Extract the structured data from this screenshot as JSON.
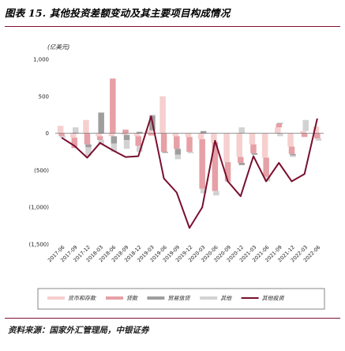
{
  "figure": {
    "title": "图表 15. 其他投资差额变动及其主要项目构成情况",
    "source": "资料来源：国家外汇管理局，中银证券"
  },
  "chart_data": {
    "type": "bar",
    "unit_label": "(亿美元)",
    "categories": [
      "2017-06",
      "2017-09",
      "2017-12",
      "2018-03",
      "2018-06",
      "2018-09",
      "2018-12",
      "2019-03",
      "2019-06",
      "2019-09",
      "2019-12",
      "2020-03",
      "2020-06",
      "2020-09",
      "2020-12",
      "2021-03",
      "2021-06",
      "2021-09",
      "2021-12",
      "2022-03",
      "2022-06"
    ],
    "x_tick_labels": [
      "2017-06",
      "2017-09",
      "2017-12",
      "2018-03",
      "2018-06",
      "2018-09",
      "2018-12",
      "2019-03",
      "2019-06",
      "2019-09",
      "2019-12",
      "2020-03",
      "2020-06",
      "2020-09",
      "2020-12",
      "2021-03",
      "2021-06",
      "2021-09",
      "2021-12",
      "2022-03",
      "2022-06"
    ],
    "ylim": [
      -1500,
      1000
    ],
    "y_ticks": [
      1000,
      500,
      0,
      -500,
      -1000,
      -1500
    ],
    "y_tick_labels": [
      "1,000",
      "500",
      "0",
      "(500)",
      "(1,000)",
      "(1,500)"
    ],
    "stacked": true,
    "series": [
      {
        "name": "货币和存款",
        "color": "#f6cfcf",
        "values": [
          100,
          -60,
          180,
          -40,
          -40,
          -20,
          -40,
          40,
          500,
          -40,
          -50,
          -80,
          -120,
          -390,
          -320,
          -150,
          -330,
          80,
          -180,
          30,
          90
        ]
      },
      {
        "name": "贷款",
        "color": "#e6a0a6",
        "values": [
          -40,
          -140,
          -150,
          -50,
          740,
          50,
          -130,
          -30,
          -250,
          -170,
          -200,
          -670,
          -660,
          -260,
          -80,
          -120,
          -260,
          50,
          -100,
          -50,
          -70
        ]
      },
      {
        "name": "贸易信贷",
        "color": "#9e9e9e",
        "values": [
          0,
          10,
          -40,
          280,
          -100,
          -70,
          20,
          200,
          -10,
          -80,
          0,
          30,
          0,
          0,
          -30,
          -20,
          0,
          10,
          -20,
          0,
          0
        ]
      },
      {
        "name": "其他",
        "color": "#d2d2d2",
        "values": [
          -20,
          70,
          -120,
          -60,
          -110,
          -120,
          -80,
          10,
          -10,
          -60,
          -20,
          -60,
          -60,
          -10,
          80,
          0,
          -60,
          -40,
          -20,
          150,
          -30
        ]
      },
      {
        "name": "其他投资",
        "type": "line",
        "color": "#7a0f2e",
        "values": [
          -60,
          -170,
          -330,
          -130,
          -230,
          -320,
          -310,
          230,
          -610,
          -800,
          -1280,
          -1000,
          -100,
          -650,
          -850,
          -310,
          -650,
          -400,
          -650,
          -550,
          200
        ]
      }
    ],
    "legend": {
      "position": "bottom",
      "boxed": true
    }
  }
}
